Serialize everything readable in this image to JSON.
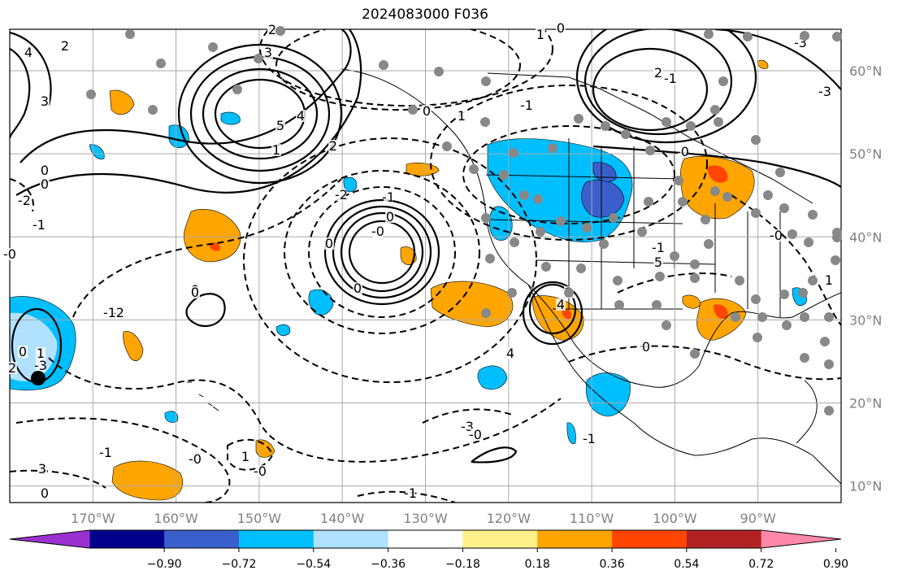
{
  "title": "2024083000 F036",
  "map": {
    "lon_range": [
      -180,
      -80
    ],
    "lat_range": [
      8,
      65
    ],
    "lon_ticks": [
      {
        "value": -170,
        "label": "170°W"
      },
      {
        "value": -160,
        "label": "160°W"
      },
      {
        "value": -150,
        "label": "150°W"
      },
      {
        "value": -140,
        "label": "140°W"
      },
      {
        "value": -130,
        "label": "130°W"
      },
      {
        "value": -120,
        "label": "120°W"
      },
      {
        "value": -110,
        "label": "110°W"
      },
      {
        "value": -100,
        "label": "100°W"
      },
      {
        "value": -90,
        "label": "90°W"
      }
    ],
    "lat_ticks": [
      {
        "value": 60,
        "label": "60°N"
      },
      {
        "value": 50,
        "label": "50°N"
      },
      {
        "value": 40,
        "label": "40°N"
      },
      {
        "value": 30,
        "label": "30°N"
      },
      {
        "value": 20,
        "label": "20°N"
      },
      {
        "value": 10,
        "label": "10°N"
      }
    ],
    "grid": true
  },
  "colorbar": {
    "levels": [
      "−0.90",
      "−0.72",
      "−0.54",
      "−0.36",
      "−0.18",
      "0.18",
      "0.36",
      "0.54",
      "0.72",
      "0.90"
    ],
    "colors": [
      "#9b30d0",
      "#00008b",
      "#3a5fcd",
      "#00bfff",
      "#b0e2ff",
      "#ffffff",
      "#fff08a",
      "#ffa500",
      "#ff4500",
      "#b22222",
      "#ff88aa"
    ]
  },
  "contour_labels": [
    "4",
    "2",
    "3",
    "3",
    "5",
    "4",
    "1",
    "2",
    "0",
    "0",
    "-2",
    "-1",
    "-0",
    "0",
    "-2",
    "-3",
    "1",
    "0",
    "2",
    "3",
    "0",
    "-1",
    "-1",
    "0",
    "-0",
    "-0",
    "1",
    "-0",
    "-1",
    "-3",
    "4",
    "2",
    "4",
    "5",
    "0",
    "1",
    "0",
    "-1",
    "0",
    "-2",
    "1",
    "-0",
    "2",
    "-1",
    "-3",
    "-3",
    "2",
    "0",
    "0",
    "-1",
    "0",
    "-1",
    "-0",
    "-1",
    "-0",
    "1"
  ],
  "station_dot_color": "#888888"
}
